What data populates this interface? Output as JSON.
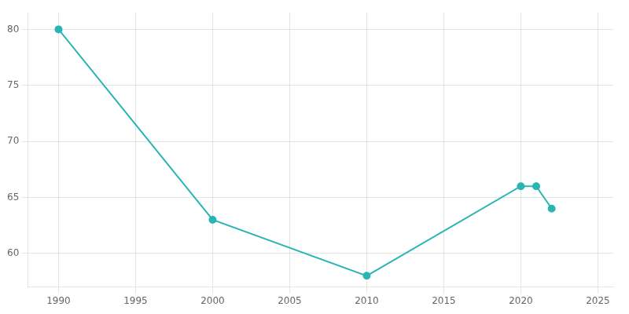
{
  "chart_data": {
    "type": "line",
    "x": [
      1990,
      2000,
      2010,
      2020,
      2021,
      2022
    ],
    "values": [
      80,
      63,
      58,
      66,
      66,
      64
    ],
    "color": "#2AB5B5",
    "marker": "circle",
    "xlim": [
      1988,
      2026
    ],
    "ylim": [
      57,
      81.5
    ],
    "xticks": [
      1990,
      1995,
      2000,
      2005,
      2010,
      2015,
      2020,
      2025
    ],
    "yticks": [
      60,
      65,
      70,
      75,
      80
    ],
    "grid": true
  }
}
